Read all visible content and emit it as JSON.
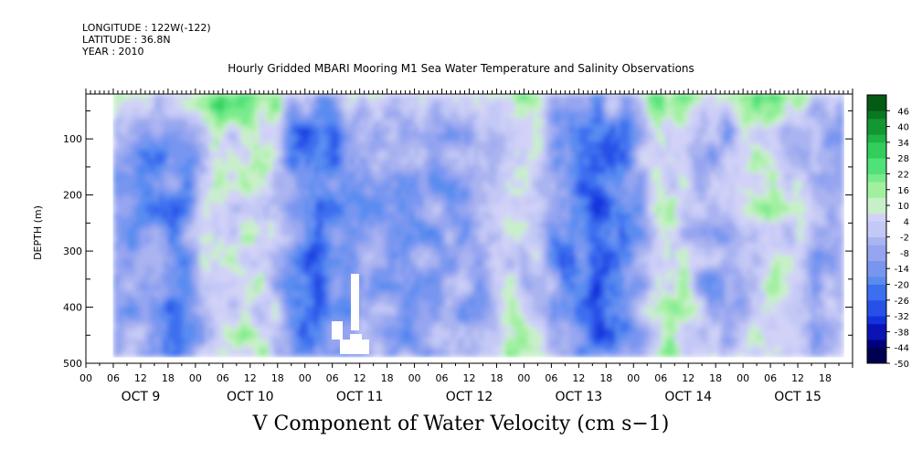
{
  "header": {
    "longitude": "LONGITUDE : 122W(-122)",
    "latitude": "LATITUDE : 36.8N",
    "year": "YEAR : 2010",
    "title": "Hourly Gridded MBARI Mooring M1 Sea Water Temperature and Salinity Observations"
  },
  "chart_data": {
    "type": "heatmap",
    "title": "Hourly Gridded MBARI Mooring M1 Sea Water Temperature and Salinity Observations",
    "bottom_label": "V Component of Water Velocity (cm s−1)",
    "ylabel": "DEPTH (m)",
    "xlabel": "",
    "ylim": [
      500,
      20
    ],
    "y_inverted": true,
    "y_ticks": [
      "100",
      "200",
      "300",
      "400",
      "500"
    ],
    "y_tick_values": [
      100,
      200,
      300,
      400,
      500
    ],
    "x_range_hours": [
      0,
      168
    ],
    "x_hour_labels": [
      "00",
      "06",
      "12",
      "18",
      "00",
      "06",
      "12",
      "18",
      "00",
      "06",
      "12",
      "18",
      "00",
      "06",
      "12",
      "18",
      "00",
      "06",
      "12",
      "18",
      "00",
      "06",
      "12",
      "18",
      "00",
      "06",
      "12",
      "18"
    ],
    "x_day_labels": [
      "OCT  9",
      "OCT 10",
      "OCT 11",
      "OCT 12",
      "OCT 13",
      "OCT 14",
      "OCT 15"
    ],
    "data_depth_range": [
      20,
      485
    ],
    "data_time_range_hours": [
      6,
      166
    ],
    "colorbar": {
      "labels": [
        "46",
        "40",
        "34",
        "28",
        "22",
        "16",
        "10",
        "4",
        "-2",
        "-8",
        "-14",
        "-20",
        "-26",
        "-32",
        "-38",
        "-44",
        "-50"
      ],
      "values": [
        46,
        40,
        34,
        28,
        22,
        16,
        10,
        4,
        -2,
        -8,
        -14,
        -20,
        -26,
        -32,
        -38,
        -44,
        -50
      ],
      "range": [
        -50,
        52
      ],
      "step": 3,
      "colors_low_to_high": [
        "#000050",
        "#00007f",
        "#0a14b4",
        "#1432dc",
        "#2850e6",
        "#3c6ef0",
        "#5a8cf0",
        "#7896f0",
        "#96a5f0",
        "#aab4f0",
        "#c3c8f5",
        "#d2d2f8",
        "#c8f0c8",
        "#a0f0a0",
        "#78eb8c",
        "#50e178",
        "#32cd5a",
        "#1eb446",
        "#149632",
        "#0a7823",
        "#055a14"
      ]
    }
  }
}
